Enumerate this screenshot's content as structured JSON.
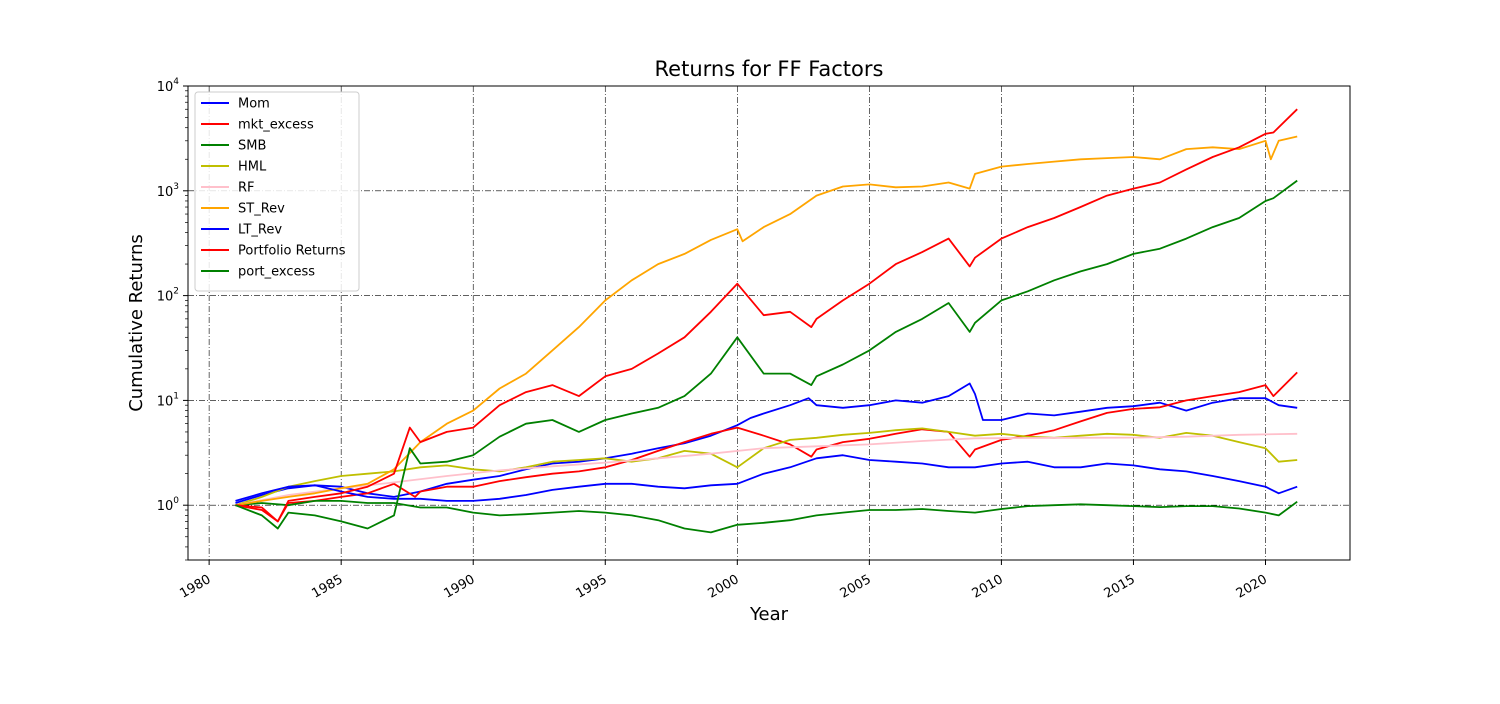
{
  "chart_data": {
    "type": "line",
    "title": "Returns for FF Factors",
    "xlabel": "Year",
    "ylabel": "Cumulative Returns",
    "xlim": [
      1979.2,
      2023.2
    ],
    "ylim": [
      0.3,
      10000
    ],
    "yscale": "log",
    "grid": true,
    "grid_style": "dash-dot",
    "legend_position": "upper-left",
    "x_ticks": [
      1980,
      1985,
      1990,
      1995,
      2000,
      2005,
      2010,
      2015,
      2020
    ],
    "x_tick_labels": [
      "1980",
      "1985",
      "1990",
      "1995",
      "2000",
      "2005",
      "2010",
      "2015",
      "2020"
    ],
    "y_ticks": [
      {
        "value": 1,
        "base": "10",
        "exp": "0"
      },
      {
        "value": 10,
        "base": "10",
        "exp": "1"
      },
      {
        "value": 100,
        "base": "10",
        "exp": "2"
      },
      {
        "value": 1000,
        "base": "10",
        "exp": "3"
      },
      {
        "value": 10000,
        "base": "10",
        "exp": "4"
      }
    ],
    "series": [
      {
        "name": "Mom",
        "color": "#0000ff",
        "x": [
          1981,
          1982,
          1983,
          1984,
          1985,
          1986,
          1987,
          1988,
          1989,
          1990,
          1991,
          1992,
          1993,
          1994,
          1995,
          1996,
          1997,
          1998,
          1999,
          2000,
          2000.5,
          2001,
          2002,
          2002.7,
          2003,
          2004,
          2005,
          2006,
          2007,
          2008,
          2008.8,
          2009,
          2009.3,
          2010,
          2011,
          2012,
          2013,
          2014,
          2015,
          2016,
          2017,
          2018,
          2019,
          2020,
          2020.5,
          2021.2
        ],
        "y": [
          1.05,
          1.25,
          1.45,
          1.55,
          1.5,
          1.3,
          1.2,
          1.35,
          1.6,
          1.75,
          1.9,
          2.2,
          2.5,
          2.6,
          2.8,
          3.1,
          3.5,
          3.9,
          4.6,
          5.8,
          6.8,
          7.5,
          9.0,
          10.5,
          9.0,
          8.5,
          9.0,
          10.0,
          9.5,
          11.0,
          14.5,
          11.5,
          6.5,
          6.5,
          7.5,
          7.2,
          7.8,
          8.5,
          8.8,
          9.5,
          8.0,
          9.5,
          10.5,
          10.5,
          9.0,
          8.5
        ]
      },
      {
        "name": "mkt_excess",
        "color": "#ff0000",
        "x": [
          1981,
          1982,
          1982.6,
          1983,
          1984,
          1985,
          1986,
          1987,
          1987.8,
          1988,
          1989,
          1990,
          1991,
          1992,
          1993,
          1994,
          1995,
          1996,
          1997,
          1998,
          1999,
          2000,
          2001,
          2002,
          2002.8,
          2003,
          2004,
          2005,
          2006,
          2007,
          2008,
          2008.8,
          2009,
          2010,
          2011,
          2012,
          2013,
          2014,
          2015,
          2016,
          2017,
          2018,
          2019,
          2020,
          2020.3,
          2021.2
        ],
        "y": [
          1.0,
          0.9,
          0.7,
          1.05,
          1.1,
          1.2,
          1.3,
          1.6,
          1.2,
          1.35,
          1.5,
          1.5,
          1.7,
          1.85,
          2.0,
          2.1,
          2.3,
          2.7,
          3.3,
          4.0,
          4.8,
          5.5,
          4.6,
          3.8,
          2.9,
          3.4,
          4.0,
          4.3,
          4.8,
          5.3,
          5.0,
          2.9,
          3.4,
          4.2,
          4.6,
          5.2,
          6.3,
          7.6,
          8.3,
          8.6,
          10.0,
          11.0,
          12.0,
          14.0,
          11.0,
          18.5
        ]
      },
      {
        "name": "SMB",
        "color": "#008000",
        "x": [
          1981,
          1982,
          1983,
          1984,
          1985,
          1986,
          1987,
          1988,
          1989,
          1990,
          1991,
          1992,
          1993,
          1994,
          1995,
          1996,
          1997,
          1998,
          1999,
          2000,
          2001,
          2002,
          2003,
          2004,
          2005,
          2006,
          2007,
          2008,
          2009,
          2010,
          2011,
          2012,
          2013,
          2014,
          2015,
          2016,
          2017,
          2018,
          2019,
          2020,
          2020.5,
          2021.2
        ],
        "y": [
          1.0,
          1.05,
          1.0,
          1.1,
          1.1,
          1.05,
          1.05,
          0.95,
          0.95,
          0.85,
          0.8,
          0.82,
          0.85,
          0.88,
          0.85,
          0.8,
          0.72,
          0.6,
          0.55,
          0.65,
          0.68,
          0.72,
          0.8,
          0.85,
          0.9,
          0.9,
          0.92,
          0.88,
          0.85,
          0.92,
          0.98,
          1.0,
          1.02,
          1.0,
          0.98,
          0.96,
          0.98,
          0.98,
          0.93,
          0.85,
          0.8,
          1.08
        ]
      },
      {
        "name": "HML",
        "color": "#bfbf00",
        "x": [
          1981,
          1982,
          1983,
          1984,
          1985,
          1986,
          1987,
          1988,
          1989,
          1990,
          1991,
          1992,
          1993,
          1994,
          1995,
          1996,
          1997,
          1998,
          1999,
          2000,
          2001,
          2002,
          2003,
          2004,
          2005,
          2006,
          2007,
          2008,
          2009,
          2010,
          2011,
          2012,
          2013,
          2014,
          2015,
          2016,
          2017,
          2018,
          2019,
          2020,
          2020.5,
          2021.2
        ],
        "y": [
          1.0,
          1.2,
          1.5,
          1.7,
          1.9,
          2.0,
          2.1,
          2.3,
          2.4,
          2.2,
          2.1,
          2.3,
          2.6,
          2.7,
          2.8,
          2.6,
          2.8,
          3.3,
          3.1,
          2.3,
          3.5,
          4.2,
          4.4,
          4.7,
          4.9,
          5.2,
          5.4,
          5.0,
          4.6,
          4.8,
          4.5,
          4.4,
          4.6,
          4.8,
          4.7,
          4.4,
          4.9,
          4.6,
          4.0,
          3.5,
          2.6,
          2.7
        ]
      },
      {
        "name": "RF",
        "color": "#ffc0cb",
        "x": [
          1981,
          1983,
          1985,
          1987,
          1989,
          1991,
          1993,
          1995,
          1997,
          1999,
          2001,
          2003,
          2005,
          2007,
          2009,
          2011,
          2013,
          2015,
          2017,
          2019,
          2021.2
        ],
        "y": [
          1.0,
          1.25,
          1.45,
          1.65,
          1.9,
          2.15,
          2.35,
          2.55,
          2.8,
          3.1,
          3.5,
          3.65,
          3.8,
          4.1,
          4.35,
          4.38,
          4.4,
          4.42,
          4.5,
          4.7,
          4.8
        ]
      },
      {
        "name": "ST_Rev",
        "color": "#ffa500",
        "x": [
          1981,
          1982,
          1983,
          1984,
          1985,
          1986,
          1987,
          1988,
          1989,
          1990,
          1991,
          1992,
          1993,
          1994,
          1995,
          1996,
          1997,
          1998,
          1999,
          2000,
          2000.2,
          2001,
          2002,
          2003,
          2004,
          2005,
          2006,
          2007,
          2008,
          2008.8,
          2009,
          2010,
          2011,
          2012,
          2013,
          2014,
          2015,
          2016,
          2017,
          2018,
          2019,
          2020,
          2020.2,
          2020.5,
          2021.2
        ],
        "y": [
          1.0,
          1.1,
          1.2,
          1.3,
          1.45,
          1.6,
          2.2,
          4.0,
          6.0,
          8.0,
          13.0,
          18.0,
          30.0,
          50.0,
          90.0,
          140.0,
          200.0,
          250.0,
          340.0,
          430.0,
          330.0,
          450.0,
          600.0,
          900.0,
          1100.0,
          1150.0,
          1080.0,
          1100.0,
          1200.0,
          1050.0,
          1450.0,
          1700.0,
          1800.0,
          1900.0,
          2000.0,
          2050.0,
          2100.0,
          2000.0,
          2500.0,
          2600.0,
          2500.0,
          3000.0,
          2000.0,
          3000.0,
          3300.0
        ]
      },
      {
        "name": "LT_Rev",
        "color": "#0000ff",
        "x": [
          1981,
          1982,
          1983,
          1984,
          1985,
          1986,
          1987,
          1988,
          1989,
          1990,
          1991,
          1992,
          1993,
          1994,
          1995,
          1996,
          1997,
          1998,
          1999,
          2000,
          2001,
          2002,
          2003,
          2004,
          2005,
          2006,
          2007,
          2008,
          2009,
          2010,
          2011,
          2012,
          2013,
          2014,
          2015,
          2016,
          2017,
          2018,
          2019,
          2020,
          2020.5,
          2021.2
        ],
        "y": [
          1.1,
          1.3,
          1.5,
          1.55,
          1.35,
          1.2,
          1.15,
          1.15,
          1.1,
          1.1,
          1.15,
          1.25,
          1.4,
          1.5,
          1.6,
          1.6,
          1.5,
          1.45,
          1.55,
          1.6,
          2.0,
          2.3,
          2.8,
          3.0,
          2.7,
          2.6,
          2.5,
          2.3,
          2.3,
          2.5,
          2.6,
          2.3,
          2.3,
          2.5,
          2.4,
          2.2,
          2.1,
          1.9,
          1.7,
          1.5,
          1.3,
          1.5
        ]
      },
      {
        "name": "Portfolio Returns",
        "color": "#ff0000",
        "x": [
          1981,
          1982,
          1982.6,
          1983,
          1984,
          1985,
          1986,
          1987,
          1987.6,
          1988,
          1989,
          1990,
          1991,
          1992,
          1993,
          1994,
          1995,
          1996,
          1997,
          1998,
          1999,
          2000,
          2001,
          2002,
          2002.8,
          2003,
          2004,
          2005,
          2006,
          2007,
          2008,
          2008.8,
          2009,
          2010,
          2011,
          2012,
          2013,
          2014,
          2015,
          2016,
          2017,
          2018,
          2019,
          2020,
          2020.3,
          2021.2
        ],
        "y": [
          1.0,
          0.95,
          0.7,
          1.1,
          1.2,
          1.3,
          1.5,
          2.0,
          5.5,
          4.0,
          5.0,
          5.5,
          9.0,
          12.0,
          14.0,
          11.0,
          17.0,
          20.0,
          28.0,
          40.0,
          70.0,
          130.0,
          65.0,
          70.0,
          50.0,
          60.0,
          90.0,
          130.0,
          200.0,
          260.0,
          350.0,
          190.0,
          230.0,
          350.0,
          450.0,
          550.0,
          700.0,
          900.0,
          1050.0,
          1200.0,
          1600.0,
          2100.0,
          2600.0,
          3500.0,
          3600.0,
          6000.0
        ]
      },
      {
        "name": "port_excess",
        "color": "#008000",
        "x": [
          1981,
          1982,
          1982.6,
          1983,
          1984,
          1985,
          1986,
          1987,
          1987.6,
          1988,
          1989,
          1990,
          1991,
          1992,
          1993,
          1994,
          1995,
          1996,
          1997,
          1998,
          1999,
          2000,
          2001,
          2002,
          2002.8,
          2003,
          2004,
          2005,
          2006,
          2007,
          2008,
          2008.8,
          2009,
          2010,
          2011,
          2012,
          2013,
          2014,
          2015,
          2016,
          2017,
          2018,
          2019,
          2020,
          2020.3,
          2021.2
        ],
        "y": [
          1.0,
          0.8,
          0.6,
          0.85,
          0.8,
          0.7,
          0.6,
          0.8,
          3.5,
          2.5,
          2.6,
          3.0,
          4.5,
          6.0,
          6.5,
          5.0,
          6.5,
          7.5,
          8.5,
          11.0,
          18.0,
          40.0,
          18.0,
          18.0,
          14.0,
          17.0,
          22.0,
          30.0,
          45.0,
          60.0,
          85.0,
          45.0,
          55.0,
          90.0,
          110.0,
          140.0,
          170.0,
          200.0,
          250.0,
          280.0,
          350.0,
          450.0,
          550.0,
          800.0,
          850.0,
          1250.0
        ]
      }
    ]
  }
}
